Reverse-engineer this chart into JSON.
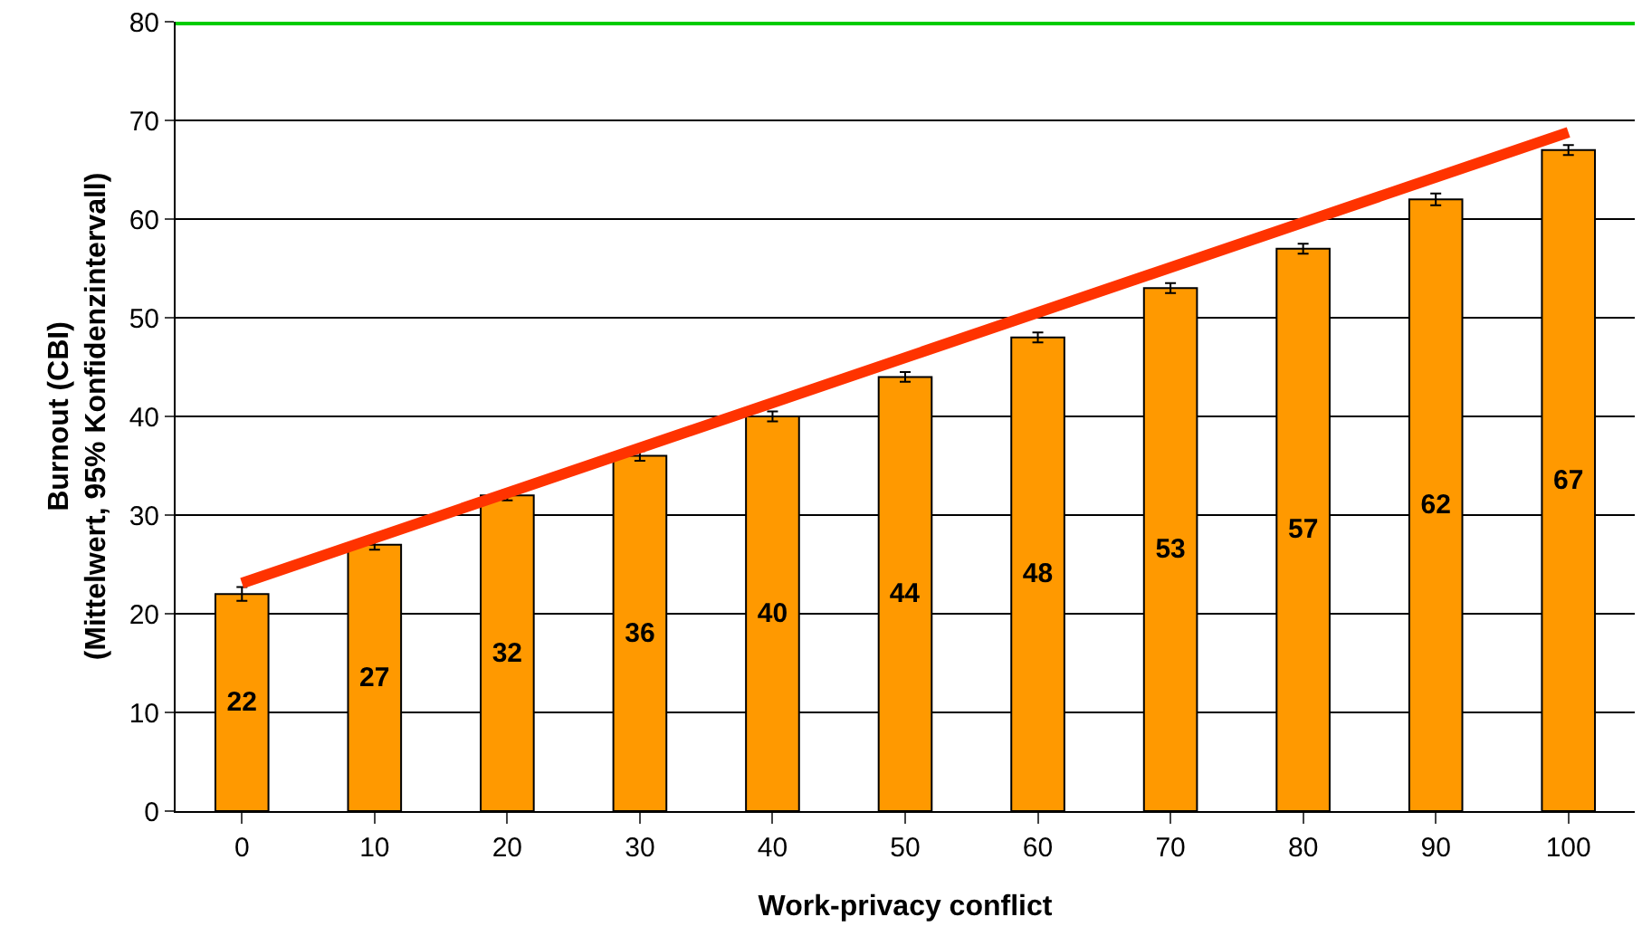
{
  "chart_data": {
    "type": "bar",
    "xlabel": "Work-privacy conflict",
    "ylabel": "Burnout (CBI)\n(Mittelwert, 95% Konfidenzintervall)",
    "categories": [
      "0",
      "10",
      "20",
      "30",
      "40",
      "50",
      "60",
      "70",
      "80",
      "90",
      "100"
    ],
    "series": [
      {
        "color": "#ff9900",
        "values": [
          22,
          27,
          32,
          36,
          40,
          44,
          48,
          53,
          57,
          62,
          67
        ],
        "value_labels": [
          "22",
          "27",
          "32",
          "36",
          "40",
          "44",
          "48",
          "53",
          "57",
          "62",
          "67"
        ],
        "errors": [
          0.7,
          0.5,
          0.5,
          0.5,
          0.5,
          0.5,
          0.5,
          0.5,
          0.5,
          0.6,
          0.5
        ]
      },
      {
        "type": "line",
        "color": "#ff3300",
        "x": [
          "0",
          "100"
        ],
        "values": [
          23.1,
          68.8
        ]
      }
    ],
    "ylim": [
      0,
      80
    ],
    "yticks": [
      0,
      10,
      20,
      30,
      40,
      50,
      60,
      70,
      80
    ],
    "grid": "y",
    "ref_lines": [
      {
        "axis": "y",
        "value": 80,
        "color": "#00cc00"
      }
    ]
  }
}
